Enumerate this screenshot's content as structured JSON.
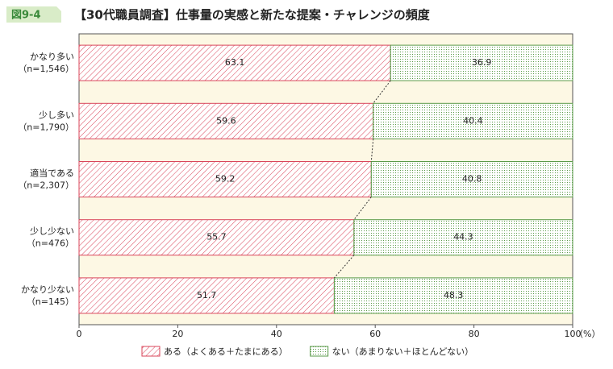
{
  "figure_label": "図9-4",
  "chart_data": {
    "type": "stacked-bar-horizontal",
    "title": "【30代職員調査】仕事量の実感と新たな提案・チャレンジの頻度",
    "categories": [
      "かなり多い",
      "少し多い",
      "適当である",
      "少し少ない",
      "かなり少ない"
    ],
    "sample_sizes": [
      "（n=1,546）",
      "（n=1,790）",
      "（n=2,307）",
      "（n=476）",
      "（n=145）"
    ],
    "series": [
      {
        "name": "ある（よくある＋たまにある）",
        "color": "#d9455a",
        "values": [
          63.1,
          59.6,
          59.2,
          55.7,
          51.7
        ]
      },
      {
        "name": "ない（あまりない＋ほとんどない）",
        "color": "#5a9a48",
        "values": [
          36.9,
          40.4,
          40.8,
          44.3,
          48.3
        ]
      }
    ],
    "xlim": [
      0,
      100
    ],
    "xticks": [
      0,
      20,
      40,
      60,
      80,
      100
    ],
    "x_unit": "（%）",
    "background": "#fdf8e4",
    "connector_lines": true,
    "legend": "bottom"
  }
}
